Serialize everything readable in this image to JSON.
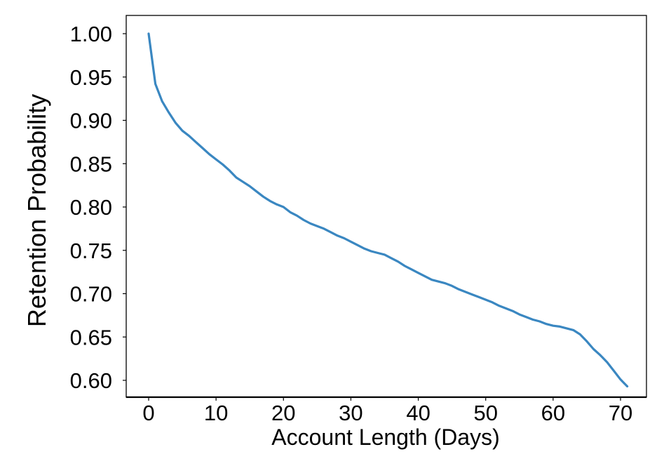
{
  "chart_data": {
    "type": "line",
    "title": "",
    "xlabel": "Account Length (Days)",
    "ylabel": "Retention Probability",
    "xlim": [
      -3,
      74
    ],
    "ylim": [
      0.58,
      1.03
    ],
    "xticks": [
      0,
      10,
      20,
      30,
      40,
      50,
      60,
      70
    ],
    "xtick_labels": [
      "0",
      "10",
      "20",
      "30",
      "40",
      "50",
      "60",
      "70"
    ],
    "yticks": [
      0.6,
      0.65,
      0.7,
      0.75,
      0.8,
      0.85,
      0.9,
      0.95,
      1.0
    ],
    "ytick_labels": [
      "0.60",
      "0.65",
      "0.70",
      "0.75",
      "0.80",
      "0.85",
      "0.90",
      "0.95",
      "1.00"
    ],
    "grid": false,
    "legend": "none",
    "series": [
      {
        "color": "#3a87c1",
        "x": [
          0,
          1,
          2,
          3,
          4,
          5,
          6,
          7,
          8,
          9,
          10,
          11,
          12,
          13,
          14,
          15,
          16,
          17,
          18,
          19,
          20,
          21,
          22,
          23,
          24,
          25,
          26,
          27,
          28,
          29,
          30,
          31,
          32,
          33,
          34,
          35,
          36,
          37,
          38,
          39,
          40,
          41,
          42,
          43,
          44,
          45,
          46,
          47,
          48,
          49,
          50,
          51,
          52,
          53,
          54,
          55,
          56,
          57,
          58,
          59,
          60,
          61,
          62,
          63,
          64,
          65,
          66,
          67,
          68,
          69,
          70,
          71
        ],
        "y": [
          1.0,
          0.942,
          0.922,
          0.909,
          0.897,
          0.888,
          0.882,
          0.875,
          0.868,
          0.861,
          0.855,
          0.849,
          0.842,
          0.834,
          0.829,
          0.824,
          0.818,
          0.812,
          0.807,
          0.803,
          0.8,
          0.794,
          0.79,
          0.785,
          0.781,
          0.778,
          0.775,
          0.771,
          0.767,
          0.764,
          0.76,
          0.756,
          0.752,
          0.749,
          0.747,
          0.745,
          0.741,
          0.737,
          0.732,
          0.728,
          0.724,
          0.72,
          0.716,
          0.714,
          0.712,
          0.709,
          0.705,
          0.702,
          0.699,
          0.696,
          0.693,
          0.69,
          0.686,
          0.683,
          0.68,
          0.676,
          0.673,
          0.67,
          0.668,
          0.665,
          0.663,
          0.662,
          0.66,
          0.658,
          0.653,
          0.645,
          0.636,
          0.629,
          0.621,
          0.611,
          0.601,
          0.593
        ]
      }
    ]
  }
}
